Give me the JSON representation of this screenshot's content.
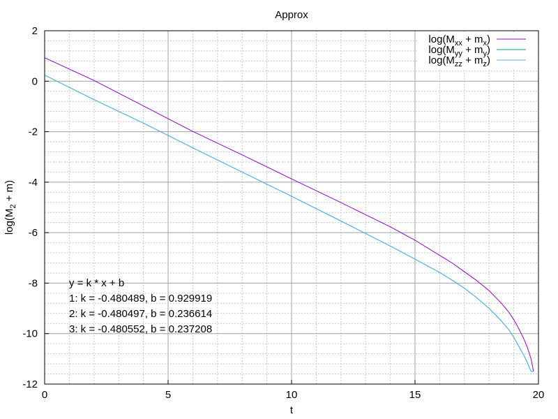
{
  "chart_data": {
    "type": "line",
    "title": "Approx",
    "xlabel": "t",
    "ylabel": "log(M₂ + m)",
    "xlim": [
      0,
      20
    ],
    "ylim": [
      -12,
      2
    ],
    "xticks": [
      "0",
      "5",
      "10",
      "15",
      "20"
    ],
    "yticks": [
      "2",
      "0",
      "-2",
      "-4",
      "-6",
      "-8",
      "-10",
      "-12"
    ],
    "grid": true,
    "legend_position": "top-right",
    "series": [
      {
        "name": "log(Mxx + mx)",
        "legend_main": "log(M",
        "legend_sub1": "xx",
        "legend_mid": " + m",
        "legend_sub2": "x",
        "legend_end": ")",
        "color": "#9400d3",
        "x": [
          0,
          2,
          4,
          6,
          8,
          10,
          12,
          14,
          15,
          16,
          16.5,
          17,
          17.5,
          18,
          18.5,
          18.8,
          19.0,
          19.2,
          19.4,
          19.55,
          19.7,
          19.8
        ],
        "y": [
          0.93,
          0.03,
          -0.98,
          -1.99,
          -2.92,
          -3.87,
          -4.81,
          -5.77,
          -6.3,
          -6.9,
          -7.2,
          -7.55,
          -7.9,
          -8.3,
          -8.8,
          -9.15,
          -9.45,
          -9.8,
          -10.2,
          -10.55,
          -11.0,
          -11.5
        ]
      },
      {
        "name": "log(Myy + my)",
        "legend_main": "log(M",
        "legend_sub1": "yy",
        "legend_mid": " + m",
        "legend_sub2": "y",
        "legend_end": ")",
        "color": "#009e73",
        "x": [
          0,
          2,
          4,
          6,
          8,
          10,
          12,
          14,
          15,
          16,
          16.5,
          17,
          17.5,
          18,
          18.5,
          18.8,
          19.0,
          19.2,
          19.4,
          19.55,
          19.7,
          19.8
        ],
        "y": [
          0.24,
          -0.73,
          -1.66,
          -2.64,
          -3.6,
          -4.56,
          -5.54,
          -6.53,
          -7.05,
          -7.58,
          -7.88,
          -8.2,
          -8.58,
          -9.0,
          -9.5,
          -9.85,
          -10.15,
          -10.5,
          -10.85,
          -11.15,
          -11.5,
          -11.5
        ]
      },
      {
        "name": "log(Mzz + mz)",
        "legend_main": "log(M",
        "legend_sub1": "zz",
        "legend_mid": " + m",
        "legend_sub2": "z",
        "legend_end": ")",
        "color": "#56b4e9",
        "x": [
          0,
          2,
          4,
          6,
          8,
          10,
          12,
          14,
          15,
          16,
          16.5,
          17,
          17.5,
          18,
          18.5,
          18.8,
          19.0,
          19.2,
          19.4,
          19.55,
          19.7,
          19.8
        ],
        "y": [
          0.24,
          -0.73,
          -1.66,
          -2.64,
          -3.6,
          -4.56,
          -5.54,
          -6.53,
          -7.05,
          -7.58,
          -7.88,
          -8.2,
          -8.58,
          -9.0,
          -9.5,
          -9.85,
          -10.15,
          -10.5,
          -10.85,
          -11.15,
          -11.5,
          -11.5
        ]
      }
    ],
    "annotations": [
      "y = k * x + b",
      "1: k = -0.480489, b = 0.929919",
      "2: k = -0.480497, b = 0.236614",
      "3: k = -0.480552, b = 0.237208"
    ]
  }
}
